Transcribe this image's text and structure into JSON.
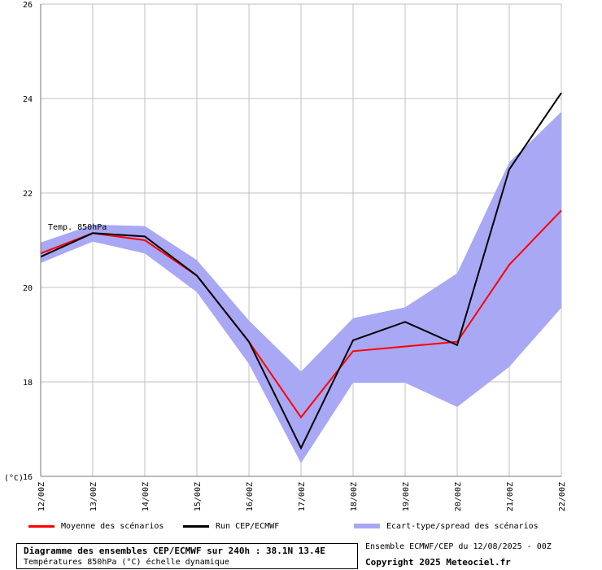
{
  "chart_data": {
    "type": "line",
    "title": "Diagramme des ensembles CEP/ECMWF sur 240h : 38.1N 13.4E",
    "subtitle": "Températures 850hPa (°C) échelle dynamique",
    "annotation": "Temp. 850hPa",
    "ylabel": "(°C)",
    "ylim": [
      16,
      26
    ],
    "yticks": [
      16,
      18,
      20,
      22,
      24,
      26
    ],
    "grid": true,
    "categories": [
      "12/00Z",
      "13/00Z",
      "14/00Z",
      "15/00Z",
      "16/00Z",
      "17/00Z",
      "18/00Z",
      "19/00Z",
      "20/00Z",
      "21/00Z",
      "22/00Z"
    ],
    "series": [
      {
        "name": "Moyenne des scénarios",
        "color": "#ff0000",
        "values": [
          20.72,
          21.15,
          21.0,
          20.25,
          18.85,
          17.25,
          18.65,
          18.75,
          18.85,
          20.48,
          21.63
        ]
      },
      {
        "name": "Run CEP/ECMWF",
        "color": "#000000",
        "values": [
          20.65,
          21.15,
          21.08,
          20.25,
          18.85,
          16.6,
          18.88,
          19.27,
          18.78,
          22.5,
          24.12
        ]
      }
    ],
    "spread": {
      "name": "Ecart-type/spread des scénarios",
      "color": "#a8a8f5",
      "upper": [
        20.95,
        21.33,
        21.3,
        20.58,
        19.3,
        18.22,
        19.35,
        19.58,
        20.3,
        22.65,
        23.72
      ],
      "lower": [
        20.52,
        20.97,
        20.72,
        19.9,
        18.38,
        16.28,
        17.98,
        17.98,
        17.47,
        18.32,
        19.57
      ]
    }
  },
  "footer": {
    "title": "Diagramme des ensembles CEP/ECMWF sur 240h : 38.1N 13.4E",
    "subtitle": "Températures 850hPa (°C) échelle dynamique",
    "run_info": "Ensemble ECMWF/CEP du 12/08/2025 - 00Z",
    "copyright": "Copyright 2025 Meteociel.fr"
  }
}
